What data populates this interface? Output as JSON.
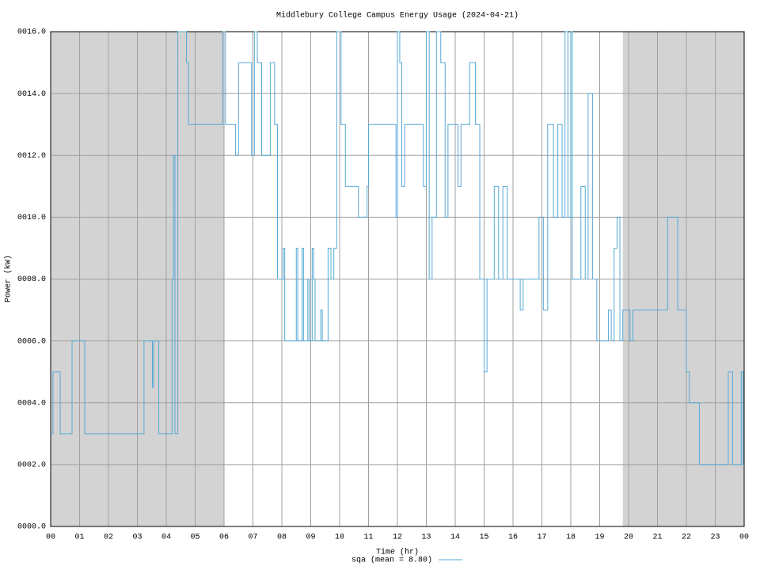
{
  "chart_data": {
    "type": "line",
    "step": true,
    "title": "Middlebury College Campus Energy Usage (2024-04-21)",
    "x_label": "Time (hr)",
    "y_label": "Power (kW)",
    "xlim": [
      0,
      24
    ],
    "ylim": [
      0,
      16
    ],
    "xticks": [
      {
        "value": 0,
        "label": "00"
      },
      {
        "value": 1,
        "label": "01"
      },
      {
        "value": 2,
        "label": "02"
      },
      {
        "value": 3,
        "label": "03"
      },
      {
        "value": 4,
        "label": "04"
      },
      {
        "value": 5,
        "label": "05"
      },
      {
        "value": 6,
        "label": "06"
      },
      {
        "value": 7,
        "label": "07"
      },
      {
        "value": 8,
        "label": "08"
      },
      {
        "value": 9,
        "label": "09"
      },
      {
        "value": 10,
        "label": "10"
      },
      {
        "value": 11,
        "label": "11"
      },
      {
        "value": 12,
        "label": "12"
      },
      {
        "value": 13,
        "label": "13"
      },
      {
        "value": 14,
        "label": "14"
      },
      {
        "value": 15,
        "label": "15"
      },
      {
        "value": 16,
        "label": "16"
      },
      {
        "value": 17,
        "label": "17"
      },
      {
        "value": 18,
        "label": "18"
      },
      {
        "value": 19,
        "label": "19"
      },
      {
        "value": 20,
        "label": "20"
      },
      {
        "value": 21,
        "label": "21"
      },
      {
        "value": 22,
        "label": "22"
      },
      {
        "value": 23,
        "label": "23"
      },
      {
        "value": 24,
        "label": "00"
      }
    ],
    "yticks": [
      {
        "value": 0,
        "label": "0000.0"
      },
      {
        "value": 2,
        "label": "0002.0"
      },
      {
        "value": 4,
        "label": "0004.0"
      },
      {
        "value": 6,
        "label": "0006.0"
      },
      {
        "value": 8,
        "label": "0008.0"
      },
      {
        "value": 10,
        "label": "0010.0"
      },
      {
        "value": 12,
        "label": "0012.0"
      },
      {
        "value": 14,
        "label": "0014.0"
      },
      {
        "value": 16,
        "label": "0016.0"
      }
    ],
    "grid": true,
    "grid_color": "#a0a0a0",
    "shaded_ranges": [
      [
        0,
        6
      ],
      [
        19.8,
        24
      ]
    ],
    "shade_color": "#d3d3d3",
    "legend": "bottom",
    "x": [
      0,
      0.08,
      0.33,
      0.74,
      1.18,
      3.23,
      3.52,
      3.56,
      3.74,
      4.2,
      4.25,
      4.3,
      4.4,
      4.7,
      4.77,
      5.95,
      6.05,
      6.4,
      6.5,
      6.95,
      7.05,
      7.15,
      7.3,
      7.6,
      7.75,
      7.85,
      8.05,
      8.1,
      8.5,
      8.55,
      8.7,
      8.75,
      8.9,
      8.95,
      9.05,
      9.1,
      9.15,
      9.35,
      9.4,
      9.6,
      9.7,
      9.8,
      9.9,
      10.05,
      10.2,
      10.65,
      10.95,
      11,
      11.95,
      12,
      12.08,
      12.15,
      12.25,
      12.9,
      13,
      13.1,
      13.2,
      13.35,
      13.5,
      13.65,
      13.75,
      14.1,
      14.2,
      14.5,
      14.7,
      14.85,
      15,
      15.1,
      15.35,
      15.5,
      15.65,
      15.8,
      16.25,
      16.35,
      16.9,
      17.05,
      17.2,
      17.4,
      17.55,
      17.7,
      17.8,
      17.9,
      18,
      18.05,
      18.35,
      18.5,
      18.6,
      18.75,
      18.9,
      19.3,
      19.4,
      19.5,
      19.6,
      19.7,
      19.8,
      20.05,
      20.15,
      21.35,
      21.7,
      22,
      22.1,
      22.45,
      23.45,
      23.6,
      23.9,
      23.97
    ],
    "series": [
      {
        "name": "sqa (mean = 8.80)",
        "color": "#56a9d6",
        "values": [
          3,
          5,
          3,
          6,
          3,
          6,
          4.5,
          6,
          3,
          8,
          12,
          3,
          16,
          15,
          13,
          16,
          13,
          12,
          15,
          12,
          16,
          15,
          12,
          15,
          13,
          8,
          9,
          6,
          9,
          6,
          9,
          6,
          8,
          6,
          9,
          8,
          6,
          7,
          6,
          9,
          8,
          9,
          16,
          13,
          11,
          10,
          11,
          13,
          10,
          16,
          15,
          11,
          13,
          11,
          16,
          8,
          10,
          16,
          15,
          10,
          13,
          11,
          13,
          15,
          13,
          8,
          5,
          8,
          11,
          8,
          11,
          8,
          7,
          8,
          10,
          7,
          13,
          10,
          13,
          10,
          16,
          10,
          16,
          8,
          11,
          8,
          14,
          8,
          6,
          7,
          6,
          9,
          10,
          6,
          7,
          6,
          7,
          10,
          7,
          5,
          4,
          2,
          5,
          2,
          5,
          2
        ]
      }
    ]
  }
}
